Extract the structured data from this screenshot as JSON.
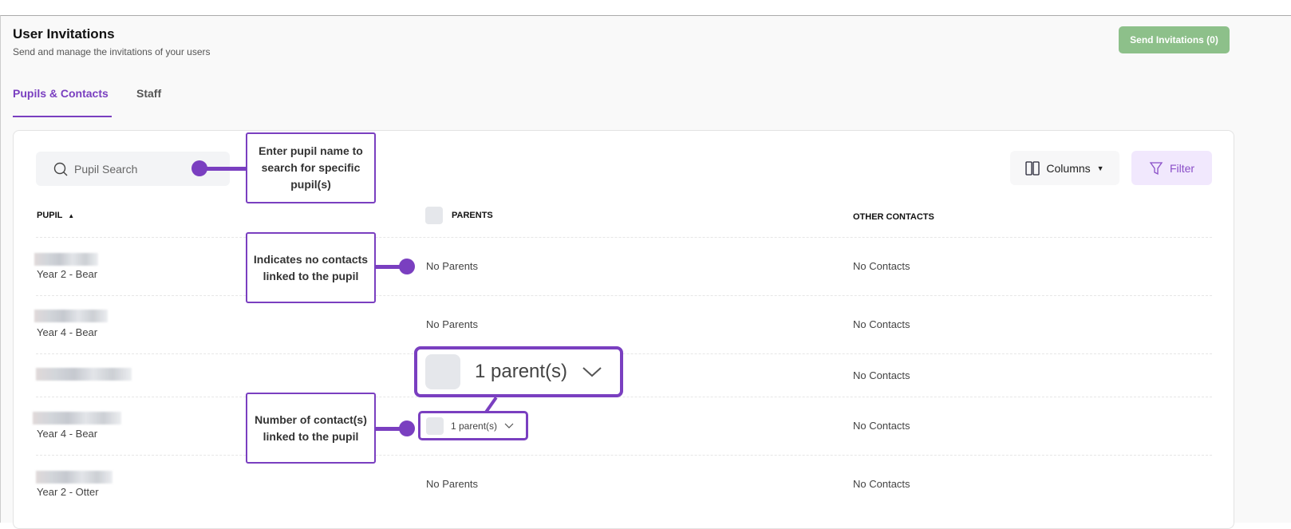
{
  "header": {
    "title": "User Invitations",
    "subtitle": "Send and manage the invitations of your users",
    "send_button": "Send Invitations (0)"
  },
  "tabs": [
    {
      "label": "Pupils & Contacts",
      "active": true
    },
    {
      "label": "Staff",
      "active": false
    }
  ],
  "toolbar": {
    "search_placeholder": "Pupil Search",
    "columns_label": "Columns",
    "filter_label": "Filter"
  },
  "table": {
    "headers": {
      "pupil": "PUPIL",
      "parents": "PARENTS",
      "other": "OTHER CONTACTS"
    },
    "rows": [
      {
        "class": "Year 2 - Bear",
        "parents": "No Parents",
        "other": "No Contacts"
      },
      {
        "class": "Year 4 - Bear",
        "parents": "No Parents",
        "other": "No Contacts"
      },
      {
        "class": "",
        "parents": "",
        "other": "No Contacts"
      },
      {
        "class": "Year 4 - Bear",
        "parents": "1 parent(s)",
        "other": "No Contacts"
      },
      {
        "class": "Year 2 - Otter",
        "parents": "No Parents",
        "other": "No Contacts"
      }
    ]
  },
  "annotations": {
    "search": "Enter pupil name to search for specific pupil(s)",
    "no_contacts": "Indicates no contacts linked to the pupil",
    "count": "Number of contact(s) linked to the pupil",
    "magnified": "1 parent(s)"
  },
  "colors": {
    "accent": "#7a3fc0",
    "send_button": "#8dc08a",
    "filter_bg": "#f1e8fd"
  }
}
